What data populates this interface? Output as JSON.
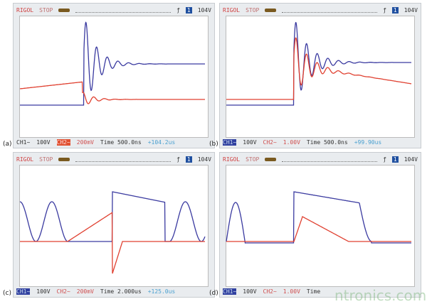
{
  "panels": [
    {
      "label": "(a)",
      "brand": "RIGOL",
      "state": "STOP",
      "trig_volt": "104V",
      "ch1": "CH1~",
      "ch1_scale": "100V",
      "ch2": "CH2~",
      "ch2_scale": "200mV",
      "time": "Time 500.0ns",
      "offset": "+104.2us",
      "active": "ch2"
    },
    {
      "label": "(b)",
      "brand": "RIGOL",
      "state": "STOP",
      "trig_volt": "104V",
      "ch1": "CH1~",
      "ch1_scale": "100V",
      "ch2": "CH2~",
      "ch2_scale": "1.00V",
      "time": "Time 500.0ns",
      "offset": "+99.90us",
      "active": "ch1"
    },
    {
      "label": "(c)",
      "brand": "RIGOL",
      "state": "STOP",
      "trig_volt": "104V",
      "ch1": "CH1~",
      "ch1_scale": "100V",
      "ch2": "CH2~",
      "ch2_scale": "200mV",
      "time": "Time 2.000us",
      "offset": "+125.0us",
      "active": "ch1"
    },
    {
      "label": "(d)",
      "brand": "RIGOL",
      "state": "STOP",
      "trig_volt": "104V",
      "ch1": "CH1~",
      "ch1_scale": "100V",
      "ch2": "CH2~",
      "ch2_scale": "1.00V",
      "time": "Time",
      "offset": "",
      "active": "ch1"
    }
  ],
  "watermark": "ntronics.com",
  "colors": {
    "ch1": "#3a3aa0",
    "ch2": "#e04030"
  }
}
